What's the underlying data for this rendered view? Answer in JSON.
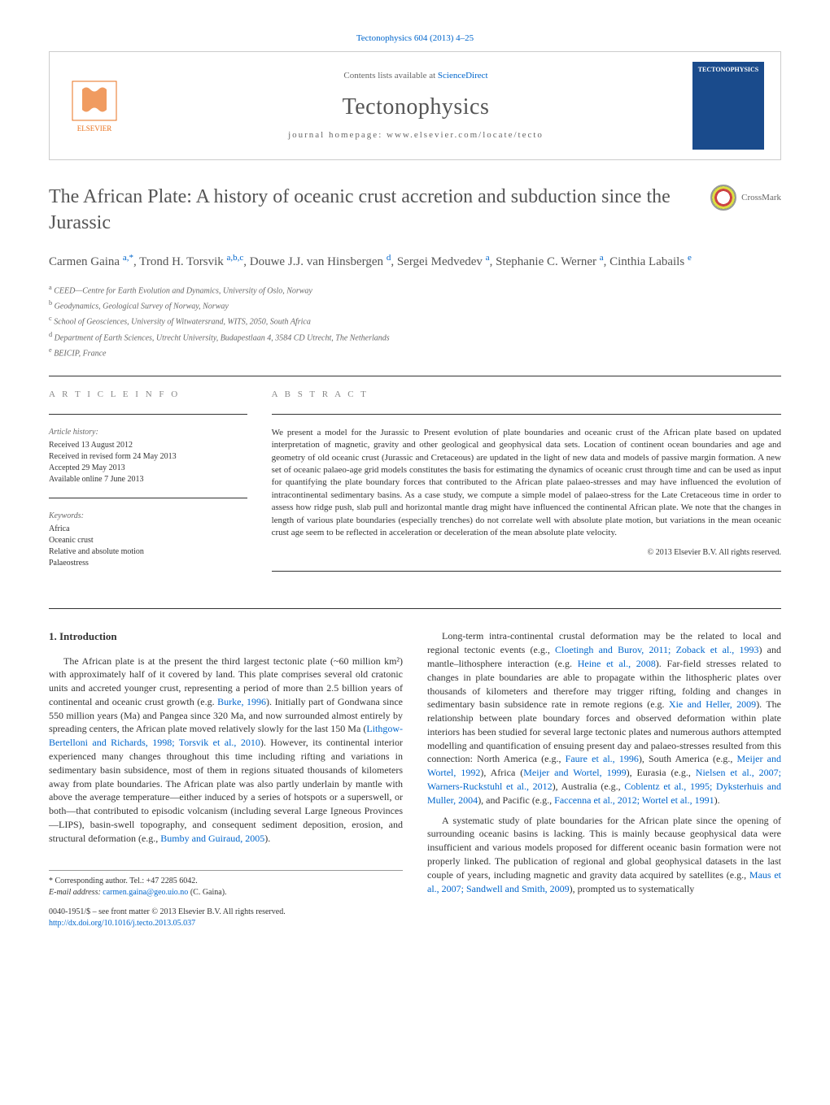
{
  "header": {
    "citation_line": "Tectonophysics 604 (2013) 4–25",
    "contents_prefix": "Contents lists available at ",
    "contents_link": "ScienceDirect",
    "journal_name": "Tectonophysics",
    "homepage_label": "journal homepage: www.elsevier.com/locate/tecto",
    "cover_title": "TECTONOPHYSICS",
    "publisher_logo_label": "ELSEVIER",
    "publisher_logo_color": "#e9711c"
  },
  "crossmark": {
    "label": "CrossMark"
  },
  "article": {
    "title": "The African Plate: A history of oceanic crust accretion and subduction since the Jurassic",
    "authors_html": "Carmen Gaina <sup>a,*</sup>, Trond H. Torsvik <sup>a,b,c</sup>, Douwe J.J. van Hinsbergen <sup>d</sup>, Sergei Medvedev <sup>a</sup>, Stephanie C. Werner <sup>a</sup>, Cinthia Labails <sup>e</sup>",
    "affiliations": [
      {
        "sup": "a",
        "text": "CEED—Centre for Earth Evolution and Dynamics, University of Oslo, Norway"
      },
      {
        "sup": "b",
        "text": "Geodynamics, Geological Survey of Norway, Norway"
      },
      {
        "sup": "c",
        "text": "School of Geosciences, University of Witwatersrand, WITS, 2050, South Africa"
      },
      {
        "sup": "d",
        "text": "Department of Earth Sciences, Utrecht University, Budapestlaan 4, 3584 CD Utrecht, The Netherlands"
      },
      {
        "sup": "e",
        "text": "BEICIP, France"
      }
    ]
  },
  "article_info": {
    "heading": "A R T I C L E   I N F O",
    "history_label": "Article history:",
    "history": [
      "Received 13 August 2012",
      "Received in revised form 24 May 2013",
      "Accepted 29 May 2013",
      "Available online 7 June 2013"
    ],
    "keywords_label": "Keywords:",
    "keywords": [
      "Africa",
      "Oceanic crust",
      "Relative and absolute motion",
      "Palaeostress"
    ]
  },
  "abstract": {
    "heading": "A B S T R A C T",
    "text": "We present a model for the Jurassic to Present evolution of plate boundaries and oceanic crust of the African plate based on updated interpretation of magnetic, gravity and other geological and geophysical data sets. Location of continent ocean boundaries and age and geometry of old oceanic crust (Jurassic and Cretaceous) are updated in the light of new data and models of passive margin formation. A new set of oceanic palaeo-age grid models constitutes the basis for estimating the dynamics of oceanic crust through time and can be used as input for quantifying the plate boundary forces that contributed to the African plate palaeo-stresses and may have influenced the evolution of intracontinental sedimentary basins. As a case study, we compute a simple model of palaeo-stress for the Late Cretaceous time in order to assess how ridge push, slab pull and horizontal mantle drag might have influenced the continental African plate. We note that the changes in length of various plate boundaries (especially trenches) do not correlate well with absolute plate motion, but variations in the mean oceanic crust age seem to be reflected in acceleration or deceleration of the mean absolute plate velocity.",
    "copyright": "© 2013 Elsevier B.V. All rights reserved."
  },
  "body": {
    "intro_heading": "1. Introduction",
    "left_paragraphs": [
      "The African plate is at the present the third largest tectonic plate (~60 million km²) with approximately half of it covered by land. This plate comprises several old cratonic units and accreted younger crust, representing a period of more than 2.5 billion years of continental and oceanic crust growth (e.g. <a class='ref-link'>Burke, 1996</a>). Initially part of Gondwana since 550 million years (Ma) and Pangea since 320 Ma, and now surrounded almost entirely by spreading centers, the African plate moved relatively slowly for the last 150 Ma (<a class='ref-link'>Lithgow-Bertelloni and Richards, 1998; Torsvik et al., 2010</a>). However, its continental interior experienced many changes throughout this time including rifting and variations in sedimentary basin subsidence, most of them in regions situated thousands of kilometers away from plate boundaries. The African plate was also partly underlain by mantle with above the average temperature—either induced by a series of hotspots or a superswell, or both—that contributed to episodic volcanism (including several Large Igneous Provinces—LIPS), basin-swell topography, and consequent sediment deposition, erosion, and structural deformation (e.g., <a class='ref-link'>Bumby and Guiraud, 2005</a>)."
    ],
    "right_paragraphs": [
      "Long-term intra-continental crustal deformation may be the related to local and regional tectonic events (e.g., <a class='ref-link'>Cloetingh and Burov, 2011; Zoback et al., 1993</a>) and mantle–lithosphere interaction (e.g. <a class='ref-link'>Heine et al., 2008</a>). Far-field stresses related to changes in plate boundaries are able to propagate within the lithospheric plates over thousands of kilometers and therefore may trigger rifting, folding and changes in sedimentary basin subsidence rate in remote regions (e.g. <a class='ref-link'>Xie and Heller, 2009</a>). The relationship between plate boundary forces and observed deformation within plate interiors has been studied for several large tectonic plates and numerous authors attempted modelling and quantification of ensuing present day and palaeo-stresses resulted from this connection: North America (e.g., <a class='ref-link'>Faure et al., 1996</a>), South America (e.g., <a class='ref-link'>Meijer and Wortel, 1992</a>), Africa (<a class='ref-link'>Meijer and Wortel, 1999</a>), Eurasia (e.g., <a class='ref-link'>Nielsen et al., 2007; Warners-Ruckstuhl et al., 2012</a>), Australia (e.g., <a class='ref-link'>Coblentz et al., 1995; Dyksterhuis and Muller, 2004</a>), and Pacific (e.g., <a class='ref-link'>Faccenna et al., 2012; Wortel et al., 1991</a>).",
      "A systematic study of plate boundaries for the African plate since the opening of surrounding oceanic basins is lacking. This is mainly because geophysical data were insufficient and various models proposed for different oceanic basin formation were not properly linked. The publication of regional and global geophysical datasets in the last couple of years, including magnetic and gravity data acquired by satellites (e.g., <a class='ref-link'>Maus et al., 2007; Sandwell and Smith, 2009</a>), prompted us to systematically"
    ]
  },
  "footer": {
    "corresponding": "* Corresponding author. Tel.: +47 2285 6042.",
    "email_label": "E-mail address: ",
    "email": "carmen.gaina@geo.uio.no",
    "email_suffix": " (C. Gaina).",
    "issn_line": "0040-1951/$ – see front matter © 2013 Elsevier B.V. All rights reserved.",
    "doi": "http://dx.doi.org/10.1016/j.tecto.2013.05.037"
  },
  "colors": {
    "link": "#0066cc",
    "text_body": "#333333",
    "text_muted": "#666666",
    "cover_bg": "#1a4b8c",
    "elsevier_orange": "#e9711c"
  }
}
